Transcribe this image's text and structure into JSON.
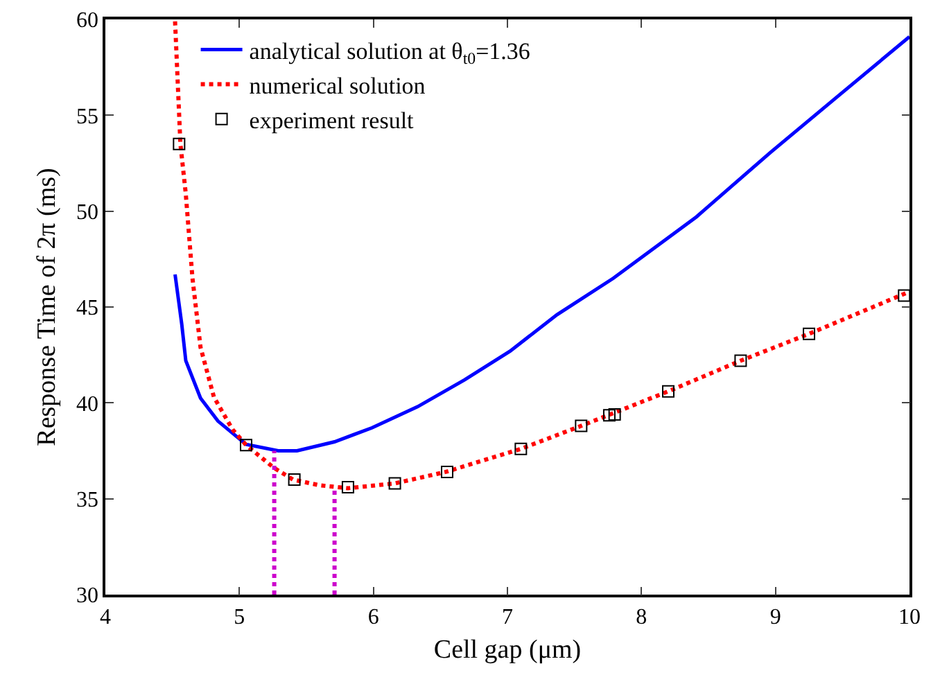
{
  "chart_data": {
    "type": "line",
    "xlabel": "Cell gap (μm)",
    "ylabel": "Response Time of 2π (ms)",
    "xlim": [
      4,
      10
    ],
    "xticks": [
      4,
      5,
      6,
      7,
      8,
      9,
      10
    ],
    "ylim": [
      30,
      60
    ],
    "yticks": [
      30,
      35,
      40,
      45,
      50,
      55,
      60
    ],
    "grid": false,
    "legend": "top left",
    "series": [
      {
        "name": "analytical solution at θ$_{t0}$=1.36",
        "color": "#0000ff",
        "line_style": "solid",
        "marker": "none",
        "x": [
          4.52,
          4.57,
          4.6,
          4.71,
          4.84,
          5.05,
          5.29,
          5.43,
          5.71,
          5.99,
          6.33,
          6.68,
          7.02,
          7.37,
          7.79,
          8.41,
          8.96,
          9.45,
          10
        ],
        "values": [
          46.7,
          44.1,
          42.2,
          40.25,
          39.05,
          37.84,
          37.5,
          37.5,
          37.97,
          38.7,
          39.8,
          41.2,
          42.7,
          44.6,
          46.5,
          49.7,
          53.05,
          55.9,
          59.1
        ]
      },
      {
        "name": "numerical solution",
        "color": "#ff0000",
        "line_style": "dotted",
        "marker": "none",
        "x": [
          4.52,
          4.56,
          4.6,
          4.65,
          4.71,
          4.81,
          4.95,
          5.05,
          5.26,
          5.4,
          5.6,
          5.81,
          6.16,
          6.54,
          7.1,
          7.55,
          8.2,
          8.74,
          9.25,
          10
        ],
        "values": [
          59.9,
          53.5,
          50.9,
          46.5,
          42.9,
          40.3,
          38.6,
          37.8,
          36.6,
          36.0,
          35.7,
          35.55,
          35.8,
          36.4,
          37.6,
          38.8,
          40.6,
          42.2,
          43.6,
          45.8
        ]
      },
      {
        "name": "experiment result",
        "type": "scatter",
        "color": "#000000",
        "marker": "square",
        "x": [
          4.55,
          5.05,
          5.41,
          5.81,
          6.16,
          6.55,
          7.1,
          7.55,
          7.76,
          7.8,
          8.2,
          8.74,
          9.25,
          9.96
        ],
        "values": [
          53.5,
          37.8,
          36.0,
          35.6,
          35.8,
          36.4,
          37.6,
          38.8,
          39.35,
          39.4,
          40.6,
          42.2,
          43.6,
          45.6
        ]
      },
      {
        "color": "#cc00cc",
        "line_style": "dotted",
        "marker": "none",
        "x": [
          5.26,
          5.26
        ],
        "values": [
          30,
          37.5
        ]
      },
      {
        "color": "#cc00cc",
        "line_style": "dotted",
        "marker": "none",
        "x": [
          5.71,
          5.71
        ],
        "values": [
          30,
          35.6
        ]
      }
    ]
  }
}
